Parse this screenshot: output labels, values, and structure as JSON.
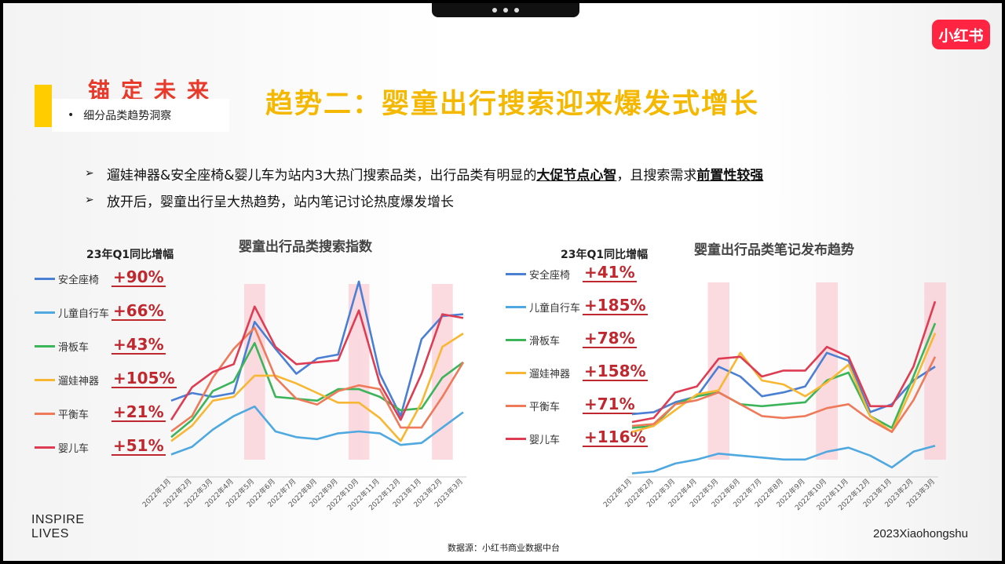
{
  "header": {
    "brand_title": "锚定未来",
    "section_label": "细分品类趋势洞察",
    "main_title": "趋势二：婴童出行搜索迎来爆发式增长",
    "logo": "小红书"
  },
  "bullets": [
    {
      "pre": "遛娃神器&安全座椅&婴儿车为站内3大热门搜索品类，出行品类有明显的",
      "b1": "大促节点心智",
      "mid": "，且搜索需求",
      "b2": "前置性较强"
    },
    {
      "pre": "放开后，婴童出行呈大热趋势，站内笔记讨论热度爆发增长",
      "b1": "",
      "mid": "",
      "b2": ""
    }
  ],
  "footer": {
    "left_line1": "INSPIRE",
    "left_line2": "LIVES",
    "right": "2023Xiaohongshu",
    "source": "数据源：小红书商业数据中台"
  },
  "colors": {
    "安全座椅": "#4a7fd4",
    "儿童自行车": "#4fa8e0",
    "滑板车": "#3cb45a",
    "遛娃神器": "#f7b733",
    "平衡车": "#ee7a5a",
    "婴儿车": "#dd3c52",
    "highlight": "#f9cdd5"
  },
  "chart_data": [
    {
      "type": "line",
      "title": "婴童出行品类搜索指数",
      "q1_label": "23年Q1同比增幅",
      "categories": [
        "2022年1月",
        "2022年2月",
        "2022年3月",
        "2022年4月",
        "2022年5月",
        "2022年6月",
        "2022年7月",
        "2022年8月",
        "2022年9月",
        "2022年10月",
        "2022年11月",
        "2022年12月",
        "2023年1月",
        "2023年2月",
        "2023年3月"
      ],
      "ylim": [
        0,
        100
      ],
      "highlight_bands": [
        [
          3.5,
          4.5
        ],
        [
          8.5,
          9.5
        ],
        [
          12.5,
          13.5
        ]
      ],
      "series": [
        {
          "name": "安全座椅",
          "growth": "+90%",
          "values": [
            36,
            40,
            38,
            40,
            77,
            63,
            50,
            58,
            60,
            98,
            50,
            28,
            68,
            80,
            81
          ]
        },
        {
          "name": "儿童自行车",
          "growth": "+66%",
          "values": [
            8,
            12,
            21,
            28,
            33,
            20,
            17,
            16,
            19,
            20,
            19,
            13,
            14,
            22,
            30
          ]
        },
        {
          "name": "滑板车",
          "growth": "+43%",
          "values": [
            17,
            26,
            41,
            46,
            66,
            38,
            37,
            36,
            42,
            42,
            38,
            31,
            32,
            48,
            56
          ]
        },
        {
          "name": "遛娃神器",
          "growth": "+105%",
          "values": [
            15,
            23,
            36,
            38,
            49,
            49,
            45,
            40,
            35,
            35,
            27,
            15,
            35,
            64,
            71
          ]
        },
        {
          "name": "平衡车",
          "growth": "+21%",
          "values": [
            20,
            28,
            48,
            63,
            74,
            48,
            37,
            34,
            41,
            44,
            42,
            22,
            22,
            38,
            56
          ]
        },
        {
          "name": "婴儿车",
          "growth": "+51%",
          "values": [
            26,
            43,
            51,
            55,
            85,
            64,
            55,
            56,
            57,
            83,
            45,
            26,
            50,
            81,
            79
          ]
        }
      ]
    },
    {
      "type": "line",
      "title": "婴童出行品类笔记发布趋势",
      "q1_label": "23年Q1同比增幅",
      "categories": [
        "2022年1月",
        "2022年2月",
        "2022年3月",
        "2022年4月",
        "2022年5月",
        "2022年6月",
        "2022年7月",
        "2022年8月",
        "2022年9月",
        "2022年10月",
        "2022年11月",
        "2022年12月",
        "2023年1月",
        "2023年2月",
        "2023年3月"
      ],
      "ylim": [
        0,
        100
      ],
      "highlight_bands": [
        [
          3.5,
          4.5
        ],
        [
          8.5,
          9.5
        ],
        [
          13.5,
          14.5
        ]
      ],
      "series": [
        {
          "name": "安全座椅",
          "growth": "+41%",
          "values": [
            31,
            32,
            37,
            40,
            55,
            50,
            40,
            42,
            45,
            62,
            58,
            32,
            36,
            48,
            55
          ]
        },
        {
          "name": "儿童自行车",
          "growth": "+185%",
          "values": [
            1,
            2,
            6,
            8,
            11,
            10,
            9,
            8,
            8,
            12,
            14,
            10,
            4,
            12,
            15
          ]
        },
        {
          "name": "滑板车",
          "growth": "+78%",
          "values": [
            24,
            25,
            36,
            40,
            42,
            36,
            35,
            36,
            37,
            48,
            52,
            30,
            24,
            50,
            77
          ]
        },
        {
          "name": "遛娃神器",
          "growth": "+158%",
          "values": [
            22,
            25,
            33,
            41,
            43,
            62,
            48,
            46,
            40,
            47,
            56,
            30,
            22,
            46,
            72
          ]
        },
        {
          "name": "平衡车",
          "growth": "+71%",
          "values": [
            25,
            26,
            36,
            38,
            42,
            36,
            30,
            29,
            30,
            34,
            36,
            28,
            22,
            38,
            60
          ]
        },
        {
          "name": "婴儿车",
          "growth": "+116%",
          "values": [
            27,
            29,
            42,
            45,
            59,
            60,
            50,
            53,
            53,
            65,
            60,
            35,
            35,
            55,
            88
          ]
        }
      ]
    }
  ]
}
